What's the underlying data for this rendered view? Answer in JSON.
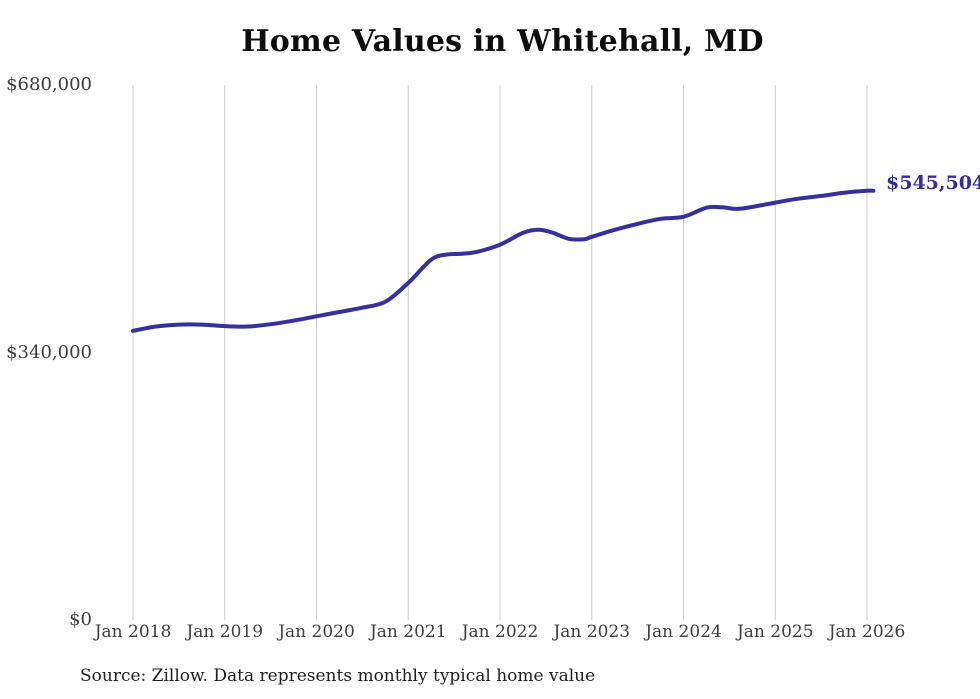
{
  "chart": {
    "title": "Home Values in Whitehall, MD",
    "source_note": "Source: Zillow. Data represents monthly typical home value",
    "end_label": "$545,504",
    "colors": {
      "line": "#34309f",
      "end_label_text": "#312d9e",
      "gridline": "#cccccc",
      "tick_text": "#3e3e3e",
      "title_text": "#0d0d0d"
    }
  },
  "chart_data": {
    "type": "line",
    "title": "Home Values in Whitehall, MD",
    "series_name": "Monthly typical home value",
    "unit": "USD",
    "xlabel": "",
    "ylabel": "",
    "grid": "vertical-only",
    "legend": "none",
    "xlim": [
      2018.0,
      2026.07
    ],
    "ylim": [
      0,
      680000
    ],
    "x_tick_labels": [
      "Jan 2018",
      "Jan 2019",
      "Jan 2020",
      "Jan 2021",
      "Jan 2022",
      "Jan 2023",
      "Jan 2024",
      "Jan 2025",
      "Jan 2026"
    ],
    "y_tick_labels": [
      "$680,000",
      "$340,000",
      "$0"
    ],
    "y_tick_values": [
      680000,
      340000,
      0
    ],
    "end_annotation": {
      "text": "$545,504",
      "value": 545504,
      "x": 2026.0
    },
    "series_color": "#34309f",
    "points": [
      [
        2018.0,
        367500
      ],
      [
        2018.25,
        373000
      ],
      [
        2018.5,
        375500
      ],
      [
        2018.75,
        375500
      ],
      [
        2019.0,
        373500
      ],
      [
        2019.25,
        373000
      ],
      [
        2019.5,
        376000
      ],
      [
        2019.75,
        380500
      ],
      [
        2020.0,
        386000
      ],
      [
        2020.25,
        391500
      ],
      [
        2020.5,
        397000
      ],
      [
        2020.75,
        404500
      ],
      [
        2021.0,
        428500
      ],
      [
        2021.25,
        458000
      ],
      [
        2021.42,
        464500
      ],
      [
        2021.58,
        465500
      ],
      [
        2021.75,
        468000
      ],
      [
        2022.0,
        477000
      ],
      [
        2022.25,
        492000
      ],
      [
        2022.42,
        496000
      ],
      [
        2022.58,
        492000
      ],
      [
        2022.75,
        484500
      ],
      [
        2022.92,
        484000
      ],
      [
        2023.0,
        487000
      ],
      [
        2023.25,
        496000
      ],
      [
        2023.5,
        503500
      ],
      [
        2023.75,
        510000
      ],
      [
        2024.0,
        512500
      ],
      [
        2024.25,
        524000
      ],
      [
        2024.42,
        524500
      ],
      [
        2024.58,
        522500
      ],
      [
        2024.75,
        525000
      ],
      [
        2025.0,
        530500
      ],
      [
        2025.25,
        535500
      ],
      [
        2025.5,
        539000
      ],
      [
        2025.75,
        543000
      ],
      [
        2026.0,
        545504
      ],
      [
        2026.07,
        545504
      ]
    ]
  }
}
